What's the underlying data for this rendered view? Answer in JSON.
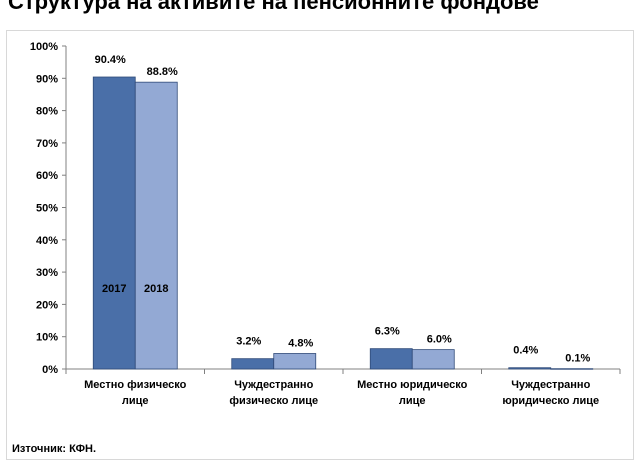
{
  "header": {
    "title_fragment": "Структура на активите на пенсионните фондове"
  },
  "colors": {
    "series_2017": "#4a6fa8",
    "series_2018": "#93a9d4",
    "axis": "#808080"
  },
  "chart_data": {
    "type": "bar",
    "categories": [
      [
        "Местно физическо",
        "лице"
      ],
      [
        "Чуждестранно",
        "физическо лице"
      ],
      [
        "Местно юридическо",
        "лице"
      ],
      [
        "Чуждестранно",
        "юридическо лице"
      ]
    ],
    "series": [
      {
        "name": "2017",
        "values": [
          90.4,
          3.2,
          6.3,
          0.4
        ],
        "labels": [
          "90.4%",
          "3.2%",
          "6.3%",
          "0.4%"
        ]
      },
      {
        "name": "2018",
        "values": [
          88.8,
          4.8,
          6.0,
          0.1
        ],
        "labels": [
          "88.8%",
          "4.8%",
          "6.0%",
          "0.1%"
        ]
      }
    ],
    "yticks": [
      "0%",
      "10%",
      "20%",
      "30%",
      "40%",
      "50%",
      "60%",
      "70%",
      "80%",
      "90%",
      "100%"
    ],
    "ylim": [
      0,
      100
    ],
    "legend": "inside-first-bar-pair",
    "grid": false
  },
  "footer": {
    "source": "Източник: КФН."
  }
}
